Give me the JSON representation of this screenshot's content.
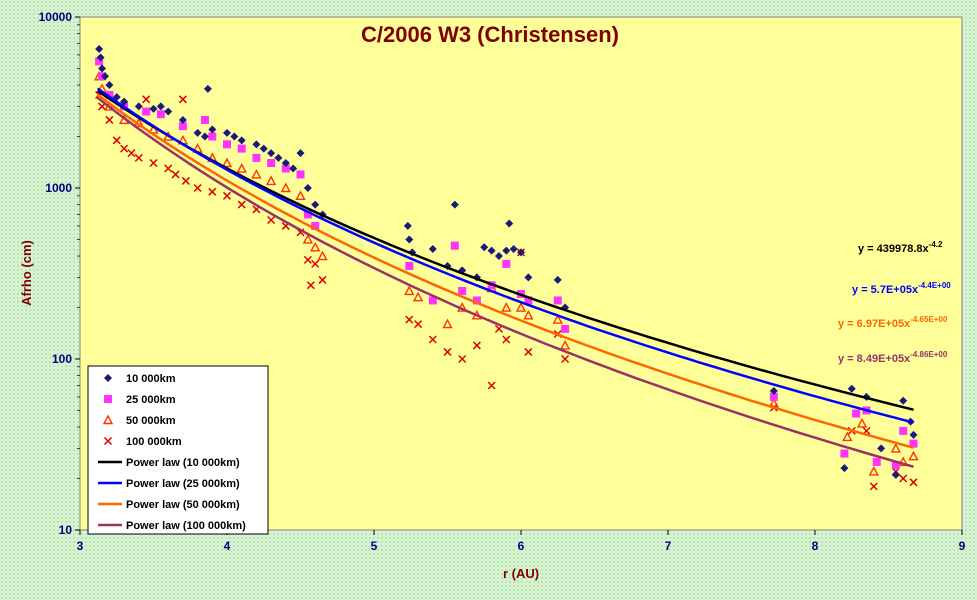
{
  "chart_data": {
    "type": "scatter",
    "title": "C/2006 W3 (Christensen)",
    "xlabel": "r (AU)",
    "ylabel": "Afrho (cm)",
    "xlim": [
      3,
      9
    ],
    "ylim": [
      10,
      10000
    ],
    "yscale": "log",
    "xticks": [
      "3",
      "4",
      "5",
      "6",
      "7",
      "8",
      "9"
    ],
    "yticks": [
      "10",
      "100",
      "1000",
      "10000"
    ],
    "grid": false,
    "legend_position": "bottom-left",
    "colors": {
      "plot_background": "#ffff99",
      "page_background": "#d6f3d2",
      "text": "#800000",
      "ticks": "#000080"
    },
    "series": [
      {
        "name": "10 000km",
        "marker": "diamond",
        "color": "#1a1a7a",
        "fit_label": "Power law (10 000km)",
        "fit_color": "#000000",
        "coef": 439978.8,
        "exp": -4.2,
        "eq_base": "y = 439978.8x",
        "eq_exp": "-4.2",
        "eq_color": "#000000",
        "points": [
          [
            3.13,
            6500
          ],
          [
            3.14,
            5800
          ],
          [
            3.15,
            5000
          ],
          [
            3.17,
            4500
          ],
          [
            3.2,
            4000
          ],
          [
            3.25,
            3400
          ],
          [
            3.3,
            3200
          ],
          [
            3.4,
            3000
          ],
          [
            3.5,
            2900
          ],
          [
            3.55,
            3000
          ],
          [
            3.6,
            2800
          ],
          [
            3.7,
            2500
          ],
          [
            3.8,
            2100
          ],
          [
            3.85,
            2000
          ],
          [
            3.87,
            3800
          ],
          [
            3.9,
            2200
          ],
          [
            4.0,
            2100
          ],
          [
            4.05,
            2000
          ],
          [
            4.1,
            1900
          ],
          [
            4.2,
            1800
          ],
          [
            4.25,
            1700
          ],
          [
            4.3,
            1600
          ],
          [
            4.35,
            1500
          ],
          [
            4.4,
            1400
          ],
          [
            4.45,
            1300
          ],
          [
            4.5,
            1600
          ],
          [
            4.55,
            1000
          ],
          [
            4.6,
            800
          ],
          [
            4.65,
            700
          ],
          [
            5.23,
            600
          ],
          [
            5.24,
            500
          ],
          [
            5.26,
            420
          ],
          [
            5.4,
            440
          ],
          [
            5.5,
            350
          ],
          [
            5.55,
            800
          ],
          [
            5.6,
            330
          ],
          [
            5.7,
            300
          ],
          [
            5.75,
            450
          ],
          [
            5.8,
            430
          ],
          [
            5.85,
            400
          ],
          [
            5.9,
            430
          ],
          [
            5.92,
            620
          ],
          [
            5.95,
            440
          ],
          [
            6.0,
            420
          ],
          [
            6.05,
            300
          ],
          [
            6.25,
            290
          ],
          [
            6.3,
            200
          ],
          [
            7.72,
            65
          ],
          [
            8.25,
            67
          ],
          [
            8.35,
            60
          ],
          [
            8.2,
            23
          ],
          [
            8.45,
            30
          ],
          [
            8.55,
            21
          ],
          [
            8.6,
            57
          ],
          [
            8.65,
            43
          ],
          [
            8.67,
            36
          ]
        ]
      },
      {
        "name": "25 000km",
        "marker": "square",
        "color": "#ff33ff",
        "fit_label": "Power law (25 000km)",
        "fit_color": "#0000ff",
        "coef": 570000,
        "exp": -4.4,
        "eq_base": "y = 5.7E+05x",
        "eq_exp": "-4.4E+00",
        "eq_color": "#0000ff",
        "points": [
          [
            3.13,
            5500
          ],
          [
            3.15,
            4500
          ],
          [
            3.2,
            3500
          ],
          [
            3.3,
            3000
          ],
          [
            3.45,
            2800
          ],
          [
            3.55,
            2700
          ],
          [
            3.7,
            2300
          ],
          [
            3.85,
            2500
          ],
          [
            3.9,
            2000
          ],
          [
            4.0,
            1800
          ],
          [
            4.1,
            1700
          ],
          [
            4.2,
            1500
          ],
          [
            4.3,
            1400
          ],
          [
            4.4,
            1300
          ],
          [
            4.5,
            1200
          ],
          [
            4.55,
            700
          ],
          [
            4.6,
            600
          ],
          [
            5.24,
            350
          ],
          [
            5.4,
            220
          ],
          [
            5.55,
            460
          ],
          [
            5.6,
            250
          ],
          [
            5.7,
            220
          ],
          [
            5.8,
            270
          ],
          [
            5.9,
            360
          ],
          [
            6.0,
            240
          ],
          [
            6.05,
            220
          ],
          [
            6.25,
            220
          ],
          [
            6.3,
            150
          ],
          [
            7.72,
            60
          ],
          [
            8.2,
            28
          ],
          [
            8.28,
            48
          ],
          [
            8.35,
            50
          ],
          [
            8.42,
            25
          ],
          [
            8.55,
            24
          ],
          [
            8.6,
            38
          ],
          [
            8.67,
            32
          ]
        ]
      },
      {
        "name": "50 000km",
        "marker": "triangle",
        "color": "#ff3300",
        "fit_label": "Power law (50 000km)",
        "fit_color": "#ff6600",
        "coef": 697000,
        "exp": -4.65,
        "eq_base": "y = 6.97E+05x",
        "eq_exp": "-4.65E+00",
        "eq_color": "#ff6600",
        "points": [
          [
            3.13,
            4500
          ],
          [
            3.15,
            3800
          ],
          [
            3.2,
            3000
          ],
          [
            3.3,
            2500
          ],
          [
            3.4,
            2400
          ],
          [
            3.5,
            2200
          ],
          [
            3.6,
            2000
          ],
          [
            3.7,
            1900
          ],
          [
            3.8,
            1700
          ],
          [
            3.9,
            1500
          ],
          [
            4.0,
            1400
          ],
          [
            4.1,
            1300
          ],
          [
            4.2,
            1200
          ],
          [
            4.3,
            1100
          ],
          [
            4.4,
            1000
          ],
          [
            4.5,
            900
          ],
          [
            4.55,
            500
          ],
          [
            4.6,
            450
          ],
          [
            4.65,
            400
          ],
          [
            5.24,
            250
          ],
          [
            5.3,
            230
          ],
          [
            5.5,
            160
          ],
          [
            5.6,
            200
          ],
          [
            5.7,
            180
          ],
          [
            5.8,
            260
          ],
          [
            5.9,
            200
          ],
          [
            6.0,
            200
          ],
          [
            6.05,
            180
          ],
          [
            6.25,
            170
          ],
          [
            6.3,
            120
          ],
          [
            7.72,
            55
          ],
          [
            8.22,
            35
          ],
          [
            8.32,
            42
          ],
          [
            8.4,
            22
          ],
          [
            8.55,
            30
          ],
          [
            8.6,
            25
          ],
          [
            8.67,
            27
          ]
        ]
      },
      {
        "name": "100 000km",
        "marker": "cross",
        "color": "#dd0000",
        "fit_label": "Power law (100 000km)",
        "fit_color": "#993366",
        "coef": 849000,
        "exp": -4.86,
        "eq_base": "y = 8.49E+05x",
        "eq_exp": "-4.86E+00",
        "eq_color": "#993366",
        "points": [
          [
            3.13,
            3500
          ],
          [
            3.15,
            3000
          ],
          [
            3.2,
            2500
          ],
          [
            3.25,
            1900
          ],
          [
            3.3,
            1700
          ],
          [
            3.35,
            1600
          ],
          [
            3.4,
            1500
          ],
          [
            3.45,
            3300
          ],
          [
            3.5,
            1400
          ],
          [
            3.6,
            1300
          ],
          [
            3.65,
            1200
          ],
          [
            3.7,
            3300
          ],
          [
            3.72,
            1100
          ],
          [
            3.8,
            1000
          ],
          [
            3.9,
            950
          ],
          [
            4.0,
            900
          ],
          [
            4.1,
            800
          ],
          [
            4.2,
            750
          ],
          [
            4.3,
            650
          ],
          [
            4.4,
            600
          ],
          [
            4.5,
            550
          ],
          [
            4.55,
            380
          ],
          [
            4.57,
            270
          ],
          [
            4.6,
            360
          ],
          [
            4.65,
            290
          ],
          [
            5.24,
            170
          ],
          [
            5.3,
            160
          ],
          [
            5.4,
            130
          ],
          [
            5.5,
            110
          ],
          [
            5.6,
            100
          ],
          [
            5.7,
            120
          ],
          [
            5.8,
            70
          ],
          [
            5.85,
            150
          ],
          [
            5.9,
            130
          ],
          [
            6.0,
            420
          ],
          [
            6.05,
            110
          ],
          [
            6.25,
            140
          ],
          [
            6.3,
            100
          ],
          [
            7.72,
            52
          ],
          [
            8.25,
            38
          ],
          [
            8.35,
            38
          ],
          [
            8.4,
            18
          ],
          [
            8.55,
            22
          ],
          [
            8.6,
            20
          ],
          [
            8.67,
            19
          ]
        ]
      }
    ]
  }
}
